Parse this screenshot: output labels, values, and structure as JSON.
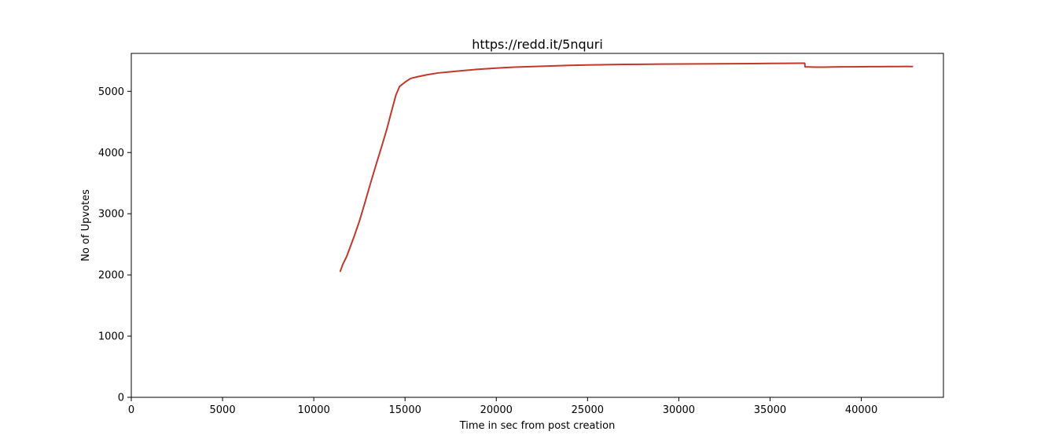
{
  "chart_data": {
    "type": "line",
    "title": "https://redd.it/5nquri",
    "xlabel": "Time in sec from post creation",
    "ylabel": "No of Upvotes",
    "xlim": [
      0,
      44500
    ],
    "ylim": [
      0,
      5620
    ],
    "xticks": [
      0,
      5000,
      10000,
      15000,
      20000,
      25000,
      30000,
      35000,
      40000
    ],
    "yticks": [
      0,
      1000,
      2000,
      3000,
      4000,
      5000
    ],
    "grid": false,
    "legend": "none",
    "series": [
      {
        "color": "#c0392b",
        "x": [
          11450,
          11600,
          11800,
          12000,
          12200,
          12500,
          12800,
          13100,
          13400,
          13700,
          14000,
          14300,
          14500,
          14700,
          15000,
          15300,
          15700,
          16200,
          16800,
          17500,
          18200,
          19000,
          20000,
          21000,
          22000,
          23000,
          24000,
          25000,
          26000,
          27000,
          28000,
          29000,
          30000,
          31000,
          32000,
          33000,
          34000,
          35000,
          36000,
          36900,
          36920,
          37500,
          38000,
          38500,
          39000,
          39500,
          40000,
          40500,
          41000,
          41500,
          42000,
          42500,
          42800
        ],
        "y": [
          2060,
          2180,
          2300,
          2460,
          2620,
          2880,
          3180,
          3490,
          3790,
          4080,
          4380,
          4720,
          4940,
          5080,
          5150,
          5210,
          5240,
          5270,
          5300,
          5320,
          5340,
          5360,
          5380,
          5395,
          5405,
          5415,
          5425,
          5430,
          5435,
          5440,
          5442,
          5445,
          5447,
          5448,
          5450,
          5452,
          5454,
          5456,
          5458,
          5460,
          5400,
          5395,
          5395,
          5398,
          5400,
          5400,
          5402,
          5403,
          5404,
          5405,
          5405,
          5406,
          5405
        ]
      }
    ]
  }
}
